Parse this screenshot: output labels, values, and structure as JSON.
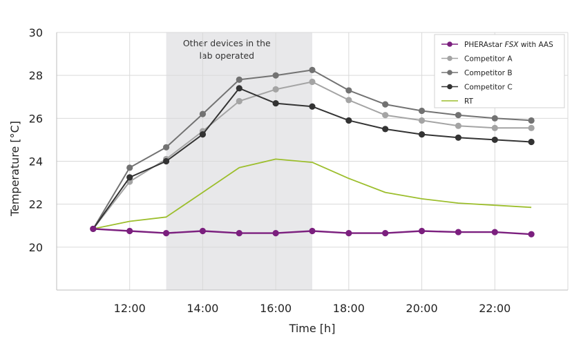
{
  "chart_data": {
    "type": "line",
    "xlabel": "Time [h]",
    "ylabel": "Temperature [°C]",
    "xlim": [
      10.0,
      24.0
    ],
    "ylim": [
      18.0,
      30.0
    ],
    "x_ticks": [
      {
        "value": 12,
        "label": "12:00"
      },
      {
        "value": 14,
        "label": "14:00"
      },
      {
        "value": 16,
        "label": "16:00"
      },
      {
        "value": 18,
        "label": "18:00"
      },
      {
        "value": 20,
        "label": "20:00"
      },
      {
        "value": 22,
        "label": "22:00"
      }
    ],
    "y_ticks": [
      20,
      22,
      24,
      26,
      28,
      30
    ],
    "grid": true,
    "legend_position": "top-right",
    "shaded_region": {
      "x_start": 13,
      "x_end": 17,
      "label_lines": [
        "Other devices in the",
        "lab operated"
      ],
      "color": "#e8e8ea"
    },
    "x": [
      11,
      12,
      13,
      14,
      15,
      16,
      17,
      18,
      19,
      20,
      21,
      22,
      23
    ],
    "series": [
      {
        "name": "PHERAstar FSX with AAS",
        "legend_parts": [
          "PHERAstar ",
          "FSX",
          " with AAS"
        ],
        "color": "#7b1f7e",
        "markers": true,
        "width": 2.4,
        "values": [
          20.85,
          20.75,
          20.65,
          20.75,
          20.65,
          20.65,
          20.75,
          20.65,
          20.65,
          20.75,
          20.7,
          20.7,
          20.6
        ]
      },
      {
        "name": "Competitor A",
        "color": "#a4a4a4",
        "markers": true,
        "width": 2,
        "values": [
          20.85,
          23.05,
          24.1,
          25.4,
          26.8,
          27.35,
          27.7,
          26.85,
          26.15,
          25.9,
          25.65,
          25.55,
          25.55
        ]
      },
      {
        "name": "Competitor B",
        "color": "#727272",
        "markers": true,
        "width": 2,
        "values": [
          20.85,
          23.7,
          24.65,
          26.2,
          27.8,
          28.0,
          28.25,
          27.3,
          26.65,
          26.35,
          26.15,
          26.0,
          25.9
        ]
      },
      {
        "name": "Competitor C",
        "color": "#333333",
        "markers": true,
        "width": 2,
        "values": [
          20.85,
          23.25,
          24.0,
          25.25,
          27.4,
          26.7,
          26.55,
          25.9,
          25.5,
          25.25,
          25.1,
          25.0,
          24.9
        ]
      },
      {
        "name": "RT",
        "color": "#9cbe2c",
        "markers": false,
        "width": 1.8,
        "values": [
          20.85,
          21.2,
          21.4,
          22.55,
          23.7,
          24.1,
          23.95,
          23.2,
          22.55,
          22.25,
          22.05,
          21.95,
          21.85
        ]
      }
    ]
  }
}
